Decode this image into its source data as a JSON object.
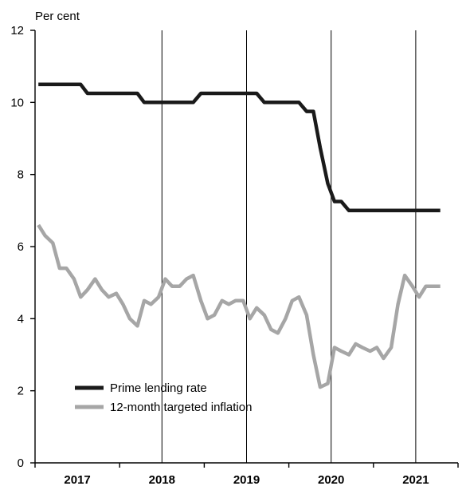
{
  "chart_data": {
    "type": "line",
    "ylabel": "Per cent",
    "ylim": [
      0,
      12
    ],
    "y_ticks": [
      0,
      2,
      4,
      6,
      8,
      10,
      12
    ],
    "xlim": [
      2016.5,
      2021.5
    ],
    "year_labels": [
      "2017",
      "2018",
      "2019",
      "2020",
      "2021"
    ],
    "grid": "vertical year separators",
    "legend_placement": "bottom-left",
    "series": [
      {
        "name": "Prime lending rate",
        "color": "#1a1a1a",
        "x": [
          2016.54,
          2016.62,
          2016.71,
          2016.79,
          2016.87,
          2016.96,
          2017.04,
          2017.12,
          2017.21,
          2017.29,
          2017.37,
          2017.46,
          2017.54,
          2017.62,
          2017.71,
          2017.79,
          2017.87,
          2017.96,
          2018.04,
          2018.12,
          2018.21,
          2018.29,
          2018.37,
          2018.46,
          2018.54,
          2018.62,
          2018.71,
          2018.79,
          2018.87,
          2018.96,
          2019.04,
          2019.12,
          2019.21,
          2019.29,
          2019.37,
          2019.46,
          2019.54,
          2019.62,
          2019.71,
          2019.79,
          2019.87,
          2019.96,
          2020.04,
          2020.12,
          2020.21,
          2020.29,
          2020.37,
          2020.46,
          2020.54,
          2020.62,
          2020.71,
          2020.79,
          2020.87,
          2020.96,
          2021.04,
          2021.12,
          2021.21,
          2021.29
        ],
        "values": [
          10.5,
          10.5,
          10.5,
          10.5,
          10.5,
          10.5,
          10.5,
          10.25,
          10.25,
          10.25,
          10.25,
          10.25,
          10.25,
          10.25,
          10.25,
          10.0,
          10.0,
          10.0,
          10.0,
          10.0,
          10.0,
          10.0,
          10.0,
          10.25,
          10.25,
          10.25,
          10.25,
          10.25,
          10.25,
          10.25,
          10.25,
          10.25,
          10.0,
          10.0,
          10.0,
          10.0,
          10.0,
          10.0,
          9.75,
          9.75,
          8.75,
          7.75,
          7.25,
          7.25,
          7.0,
          7.0,
          7.0,
          7.0,
          7.0,
          7.0,
          7.0,
          7.0,
          7.0,
          7.0,
          7.0,
          7.0,
          7.0,
          7.0
        ]
      },
      {
        "name": "12-month targeted inflation",
        "color": "#a6a6a6",
        "x": [
          2016.54,
          2016.62,
          2016.71,
          2016.79,
          2016.87,
          2016.96,
          2017.04,
          2017.12,
          2017.21,
          2017.29,
          2017.37,
          2017.46,
          2017.54,
          2017.62,
          2017.71,
          2017.79,
          2017.87,
          2017.96,
          2018.04,
          2018.12,
          2018.21,
          2018.29,
          2018.37,
          2018.46,
          2018.54,
          2018.62,
          2018.71,
          2018.79,
          2018.87,
          2018.96,
          2019.04,
          2019.12,
          2019.21,
          2019.29,
          2019.37,
          2019.46,
          2019.54,
          2019.62,
          2019.71,
          2019.79,
          2019.87,
          2019.96,
          2020.04,
          2020.12,
          2020.21,
          2020.29,
          2020.37,
          2020.46,
          2020.54,
          2020.62,
          2020.71,
          2020.79,
          2020.87,
          2020.96,
          2021.04,
          2021.12,
          2021.21,
          2021.29
        ],
        "values": [
          6.6,
          6.3,
          6.1,
          5.4,
          5.4,
          5.1,
          4.6,
          4.8,
          5.1,
          4.8,
          4.6,
          4.7,
          4.4,
          4.0,
          3.8,
          4.5,
          4.4,
          4.6,
          5.1,
          4.9,
          4.9,
          5.1,
          5.2,
          4.5,
          4.0,
          4.1,
          4.5,
          4.4,
          4.5,
          4.5,
          4.0,
          4.3,
          4.1,
          3.7,
          3.6,
          4.0,
          4.5,
          4.6,
          4.1,
          3.0,
          2.1,
          2.2,
          3.2,
          3.1,
          3.0,
          3.3,
          3.2,
          3.1,
          3.2,
          2.9,
          3.2,
          4.4,
          5.2,
          4.9,
          4.6,
          4.9,
          4.9,
          4.9
        ]
      }
    ]
  }
}
